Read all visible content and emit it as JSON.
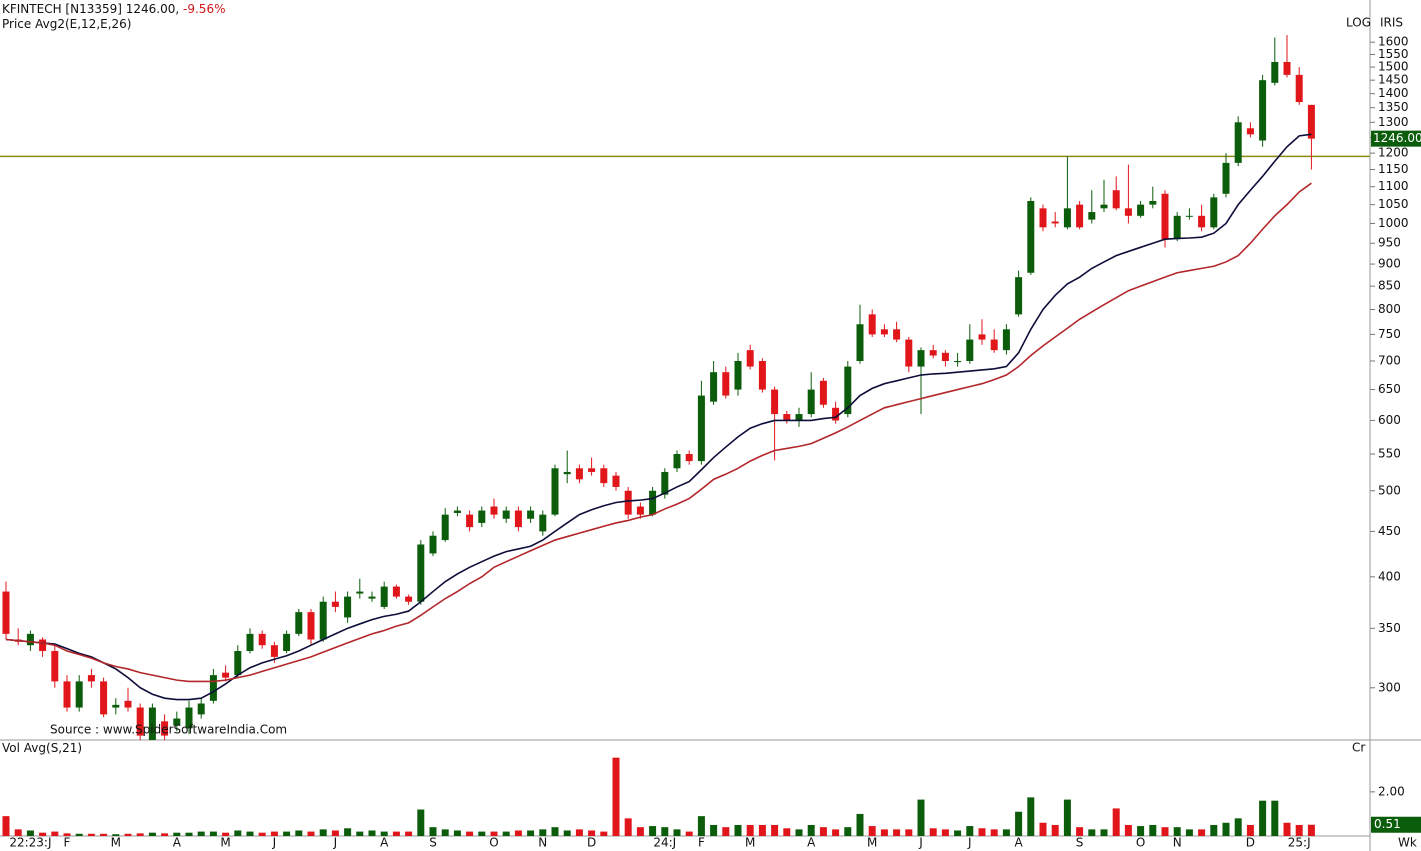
{
  "header": {
    "symbol": "KFINTECH [N13359]",
    "last": "1246.00,",
    "change": "-9.56%",
    "price_label": "Price",
    "indicator": "Avg2(E,12,E,26)",
    "scale_label": "LOG",
    "source_label": "IRIS",
    "source": "Source : www.SpiderSoftwareIndia.Com",
    "period": "Wk"
  },
  "chart_data": {
    "type": "candlestick",
    "log": true,
    "up_color": "#0b5d0b",
    "down_color": "#e0161b",
    "categories": [
      null,
      null,
      "22:23:J",
      null,
      null,
      "F",
      null,
      null,
      null,
      "M",
      null,
      null,
      null,
      null,
      "A",
      null,
      null,
      null,
      "M",
      null,
      null,
      null,
      "J",
      null,
      null,
      null,
      null,
      "J",
      null,
      null,
      null,
      "A",
      null,
      null,
      null,
      "S",
      null,
      null,
      null,
      null,
      "O",
      null,
      null,
      null,
      "N",
      null,
      null,
      null,
      "D",
      null,
      null,
      null,
      null,
      null,
      "24:J",
      null,
      null,
      "F",
      null,
      null,
      null,
      "M",
      null,
      null,
      null,
      null,
      "A",
      null,
      null,
      null,
      null,
      "M",
      null,
      null,
      null,
      "J",
      null,
      null,
      null,
      "J",
      null,
      null,
      null,
      "A",
      null,
      null,
      null,
      null,
      "S",
      null,
      null,
      null,
      null,
      "O",
      null,
      null,
      "N",
      null,
      null,
      null,
      null,
      null,
      "D",
      null,
      null,
      null,
      "25:J",
      null
    ],
    "open": [
      385,
      340,
      335,
      340,
      330,
      305,
      285,
      310,
      305,
      285,
      290,
      285,
      262,
      275,
      272,
      270,
      280,
      290,
      312,
      310,
      330,
      345,
      335,
      330,
      345,
      365,
      340,
      375,
      360,
      383,
      378,
      370,
      390,
      380,
      375,
      425,
      440,
      472,
      470,
      460,
      480,
      465,
      475,
      465,
      450,
      470,
      522,
      530,
      530,
      530,
      520,
      500,
      480,
      470,
      495,
      530,
      550,
      540,
      630,
      680,
      650,
      720,
      700,
      650,
      610,
      600,
      610,
      665,
      620,
      610,
      700,
      790,
      760,
      760,
      740,
      690,
      720,
      715,
      698,
      700,
      750,
      740,
      720,
      790,
      880,
      1040,
      1005,
      990,
      1050,
      1010,
      1040,
      1090,
      1040,
      1020,
      1050,
      1080,
      960,
      1018,
      1020,
      990,
      1080,
      1170,
      1280,
      1240,
      1440,
      1520,
      1470,
      1360
    ],
    "high": [
      395,
      350,
      348,
      342,
      335,
      310,
      310,
      315,
      308,
      292,
      300,
      288,
      288,
      280,
      282,
      290,
      292,
      315,
      318,
      335,
      350,
      348,
      338,
      348,
      368,
      368,
      380,
      385,
      385,
      398,
      385,
      395,
      392,
      382,
      440,
      450,
      478,
      480,
      475,
      480,
      490,
      480,
      480,
      480,
      475,
      535,
      555,
      535,
      545,
      535,
      525,
      505,
      485,
      505,
      530,
      555,
      555,
      665,
      700,
      690,
      715,
      730,
      705,
      655,
      615,
      620,
      680,
      670,
      630,
      700,
      810,
      800,
      770,
      775,
      745,
      725,
      730,
      720,
      715,
      770,
      780,
      760,
      770,
      885,
      1070,
      1050,
      1030,
      1190,
      1060,
      1090,
      1120,
      1130,
      1165,
      1060,
      1100,
      1090,
      1030,
      1040,
      1050,
      1080,
      1200,
      1320,
      1300,
      1470,
      1620,
      1630,
      1500,
      1360
    ],
    "low": [
      340,
      335,
      330,
      325,
      300,
      282,
      282,
      300,
      278,
      280,
      282,
      262,
      266,
      262,
      268,
      266,
      277,
      288,
      305,
      308,
      328,
      332,
      320,
      328,
      343,
      335,
      338,
      365,
      355,
      378,
      375,
      368,
      378,
      372,
      372,
      422,
      438,
      468,
      450,
      455,
      465,
      460,
      450,
      460,
      445,
      468,
      510,
      510,
      520,
      505,
      500,
      465,
      465,
      468,
      490,
      525,
      535,
      535,
      625,
      635,
      640,
      685,
      645,
      541,
      595,
      590,
      605,
      620,
      595,
      605,
      695,
      745,
      745,
      735,
      680,
      610,
      705,
      690,
      690,
      695,
      730,
      715,
      712,
      785,
      875,
      980,
      990,
      985,
      985,
      1000,
      1030,
      1035,
      1000,
      1015,
      1040,
      940,
      955,
      1010,
      980,
      985,
      1070,
      1160,
      1250,
      1220,
      1430,
      1460,
      1360,
      1150
    ],
    "close": [
      345,
      338,
      345,
      330,
      305,
      285,
      305,
      305,
      280,
      287,
      285,
      265,
      285,
      265,
      277,
      285,
      288,
      310,
      308,
      330,
      345,
      335,
      325,
      345,
      365,
      340,
      375,
      370,
      380,
      385,
      380,
      390,
      380,
      375,
      435,
      445,
      470,
      475,
      455,
      475,
      470,
      475,
      455,
      475,
      470,
      530,
      525,
      515,
      525,
      510,
      505,
      470,
      470,
      500,
      525,
      550,
      540,
      640,
      680,
      640,
      700,
      690,
      650,
      610,
      600,
      610,
      650,
      625,
      600,
      690,
      770,
      750,
      750,
      740,
      690,
      720,
      710,
      700,
      700,
      740,
      740,
      720,
      760,
      870,
      1060,
      990,
      1000,
      1040,
      990,
      1030,
      1050,
      1040,
      1020,
      1050,
      1060,
      960,
      1020,
      1020,
      990,
      1070,
      1170,
      1300,
      1260,
      1450,
      1520,
      1470,
      1370,
      1246
    ],
    "lines": [
      {
        "color": "#0d0d3a",
        "values": [
          340,
          339,
          338,
          337,
          336,
          332,
          328,
          325,
          320,
          315,
          308,
          300,
          295,
          292,
          291,
          291,
          292,
          297,
          303,
          310,
          316,
          320,
          323,
          326,
          330,
          335,
          340,
          345,
          350,
          354,
          358,
          361,
          363,
          366,
          375,
          385,
          395,
          403,
          410,
          416,
          422,
          427,
          430,
          433,
          440,
          450,
          460,
          470,
          476,
          481,
          485,
          487,
          488,
          490,
          497,
          505,
          512,
          528,
          545,
          560,
          575,
          588,
          595,
          600,
          600,
          600,
          600,
          603,
          605,
          620,
          640,
          652,
          660,
          665,
          670,
          675,
          677,
          678,
          680,
          682,
          684,
          686,
          690,
          715,
          760,
          800,
          830,
          855,
          870,
          890,
          905,
          920,
          930,
          940,
          950,
          960,
          962,
          963,
          965,
          975,
          1000,
          1050,
          1090,
          1130,
          1175,
          1220,
          1255,
          1260
        ]
      },
      {
        "color": "#b3262a",
        "values": [
          340,
          339,
          338,
          337,
          335,
          330,
          327,
          324,
          320,
          317,
          315,
          312,
          310,
          308,
          306,
          305,
          305,
          305,
          306,
          308,
          310,
          313,
          316,
          319,
          322,
          325,
          329,
          333,
          337,
          341,
          345,
          348,
          352,
          355,
          362,
          370,
          378,
          385,
          393,
          400,
          410,
          416,
          422,
          428,
          434,
          440,
          444,
          448,
          452,
          456,
          460,
          463,
          467,
          470,
          477,
          483,
          490,
          502,
          515,
          522,
          530,
          540,
          548,
          555,
          558,
          561,
          565,
          573,
          581,
          590,
          600,
          610,
          620,
          625,
          630,
          635,
          640,
          645,
          650,
          655,
          660,
          667,
          675,
          690,
          710,
          728,
          745,
          762,
          780,
          795,
          810,
          825,
          840,
          850,
          860,
          870,
          880,
          885,
          890,
          895,
          905,
          920,
          950,
          985,
          1020,
          1050,
          1085,
          1110
        ]
      }
    ],
    "hline": {
      "value": 1190,
      "color": "#8c8a10"
    },
    "ylim": [
      262,
      1785
    ],
    "yticks": [
      300,
      350,
      400,
      450,
      500,
      550,
      600,
      650,
      700,
      750,
      800,
      850,
      900,
      950,
      1000,
      1050,
      1100,
      1150,
      1200,
      1250,
      1300,
      1350,
      1400,
      1450,
      1500,
      1550,
      1600
    ],
    "last_label": "1246.00",
    "volume": {
      "label": "Vol",
      "indicator": "Avg(S,21)",
      "unit": "Cr",
      "last_label": "0.51",
      "ylim": [
        0,
        4.35
      ],
      "yticks": [
        {
          "value": 2,
          "label": "2.00"
        }
      ],
      "values": [
        0.9,
        0.3,
        0.25,
        0.15,
        0.2,
        0.12,
        0.1,
        0.1,
        0.1,
        0.08,
        0.1,
        0.12,
        0.15,
        0.12,
        0.15,
        0.15,
        0.2,
        0.2,
        0.15,
        0.25,
        0.2,
        0.15,
        0.2,
        0.2,
        0.25,
        0.2,
        0.3,
        0.25,
        0.35,
        0.2,
        0.25,
        0.2,
        0.2,
        0.2,
        1.2,
        0.4,
        0.3,
        0.25,
        0.2,
        0.2,
        0.2,
        0.2,
        0.25,
        0.25,
        0.3,
        0.4,
        0.25,
        0.3,
        0.25,
        0.2,
        3.55,
        0.8,
        0.4,
        0.45,
        0.4,
        0.3,
        0.2,
        0.9,
        0.5,
        0.4,
        0.5,
        0.5,
        0.5,
        0.5,
        0.35,
        0.3,
        0.5,
        0.4,
        0.3,
        0.4,
        1.0,
        0.45,
        0.3,
        0.3,
        0.3,
        1.65,
        0.35,
        0.3,
        0.25,
        0.45,
        0.35,
        0.3,
        0.3,
        1.1,
        1.75,
        0.6,
        0.5,
        1.65,
        0.4,
        0.3,
        0.3,
        1.25,
        0.5,
        0.45,
        0.5,
        0.4,
        0.4,
        0.3,
        0.3,
        0.5,
        0.6,
        0.8,
        0.5,
        1.6,
        1.6,
        0.6,
        0.5,
        0.51
      ]
    }
  }
}
